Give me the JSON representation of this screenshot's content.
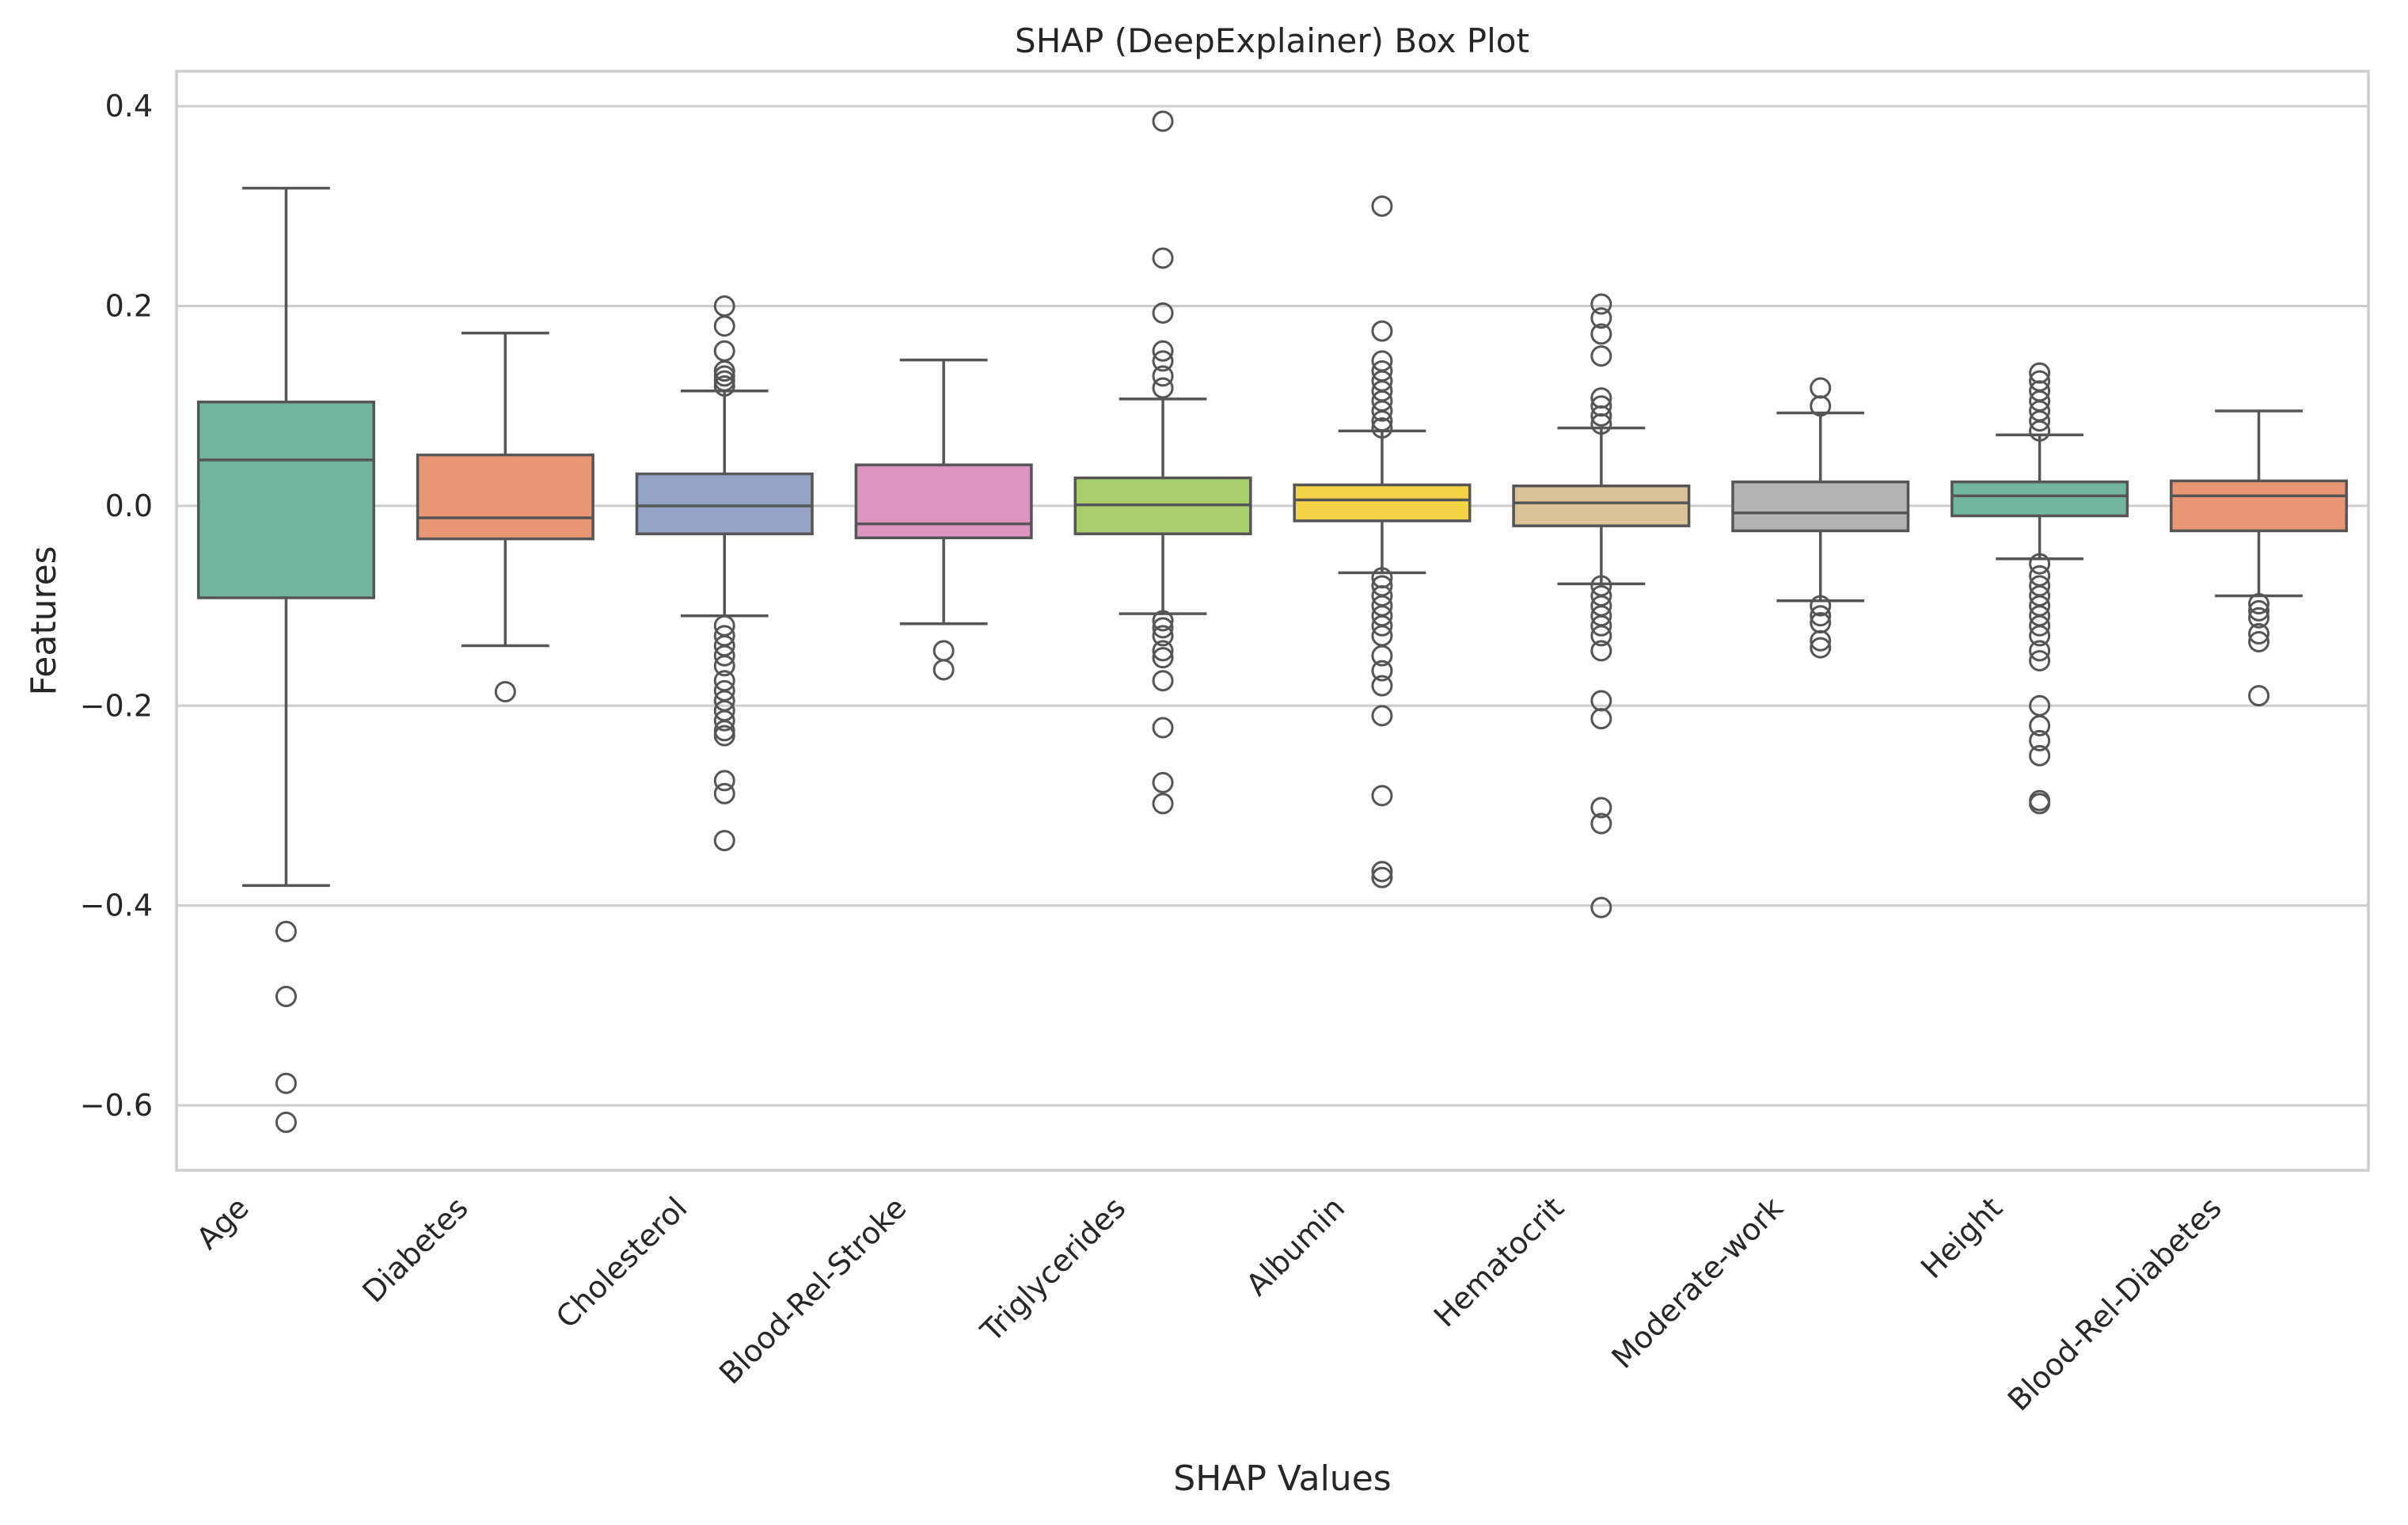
{
  "chart_data": {
    "type": "box",
    "title": "SHAP (DeepExplainer) Box Plot",
    "xlabel": "SHAP Values",
    "ylabel": "Features",
    "ylim": [
      -0.665,
      0.435
    ],
    "yticks": [
      0.4,
      0.2,
      0.0,
      -0.2,
      -0.4,
      -0.6
    ],
    "ytick_labels": [
      "0.4",
      "0.2",
      "0.0",
      "−0.2",
      "−0.4",
      "−0.6"
    ],
    "grid": "horizontal",
    "categories": [
      "Age",
      "Diabetes",
      "Cholesterol",
      "Blood-Rel-Stroke",
      "Triglycerides",
      "Albumin",
      "Hematocrit",
      "Moderate-work",
      "Height",
      "Blood-Rel-Diabetes"
    ],
    "colors": [
      "#72b6a1",
      "#e99675",
      "#95a3c6",
      "#dd94c0",
      "#a9cf6d",
      "#f5d347",
      "#dbc397",
      "#b3b3b3",
      "#72b6a1",
      "#e99675"
    ],
    "edge_color": "#555555",
    "boxes": [
      {
        "category": "Age",
        "whisker_low": -0.38,
        "q1": -0.092,
        "median": 0.046,
        "q3": 0.104,
        "whisker_high": 0.318,
        "outliers": [
          -0.426,
          -0.491,
          -0.578,
          -0.617
        ]
      },
      {
        "category": "Diabetes",
        "whisker_low": -0.14,
        "q1": -0.033,
        "median": -0.012,
        "q3": 0.051,
        "whisker_high": 0.173,
        "outliers": [
          -0.186
        ]
      },
      {
        "category": "Cholesterol",
        "whisker_low": -0.11,
        "q1": -0.028,
        "median": 0.0,
        "q3": 0.032,
        "whisker_high": 0.115,
        "outliers": [
          0.2,
          0.18,
          0.155,
          0.135,
          0.13,
          0.125,
          0.12,
          -0.12,
          -0.13,
          -0.14,
          -0.15,
          -0.16,
          -0.175,
          -0.185,
          -0.195,
          -0.205,
          -0.215,
          -0.225,
          -0.23,
          -0.275,
          -0.288,
          -0.335
        ]
      },
      {
        "category": "Blood-Rel-Stroke",
        "whisker_low": -0.118,
        "q1": -0.032,
        "median": -0.018,
        "q3": 0.041,
        "whisker_high": 0.146,
        "outliers": [
          -0.145,
          -0.164
        ]
      },
      {
        "category": "Triglycerides",
        "whisker_low": -0.108,
        "q1": -0.028,
        "median": 0.001,
        "q3": 0.028,
        "whisker_high": 0.107,
        "outliers": [
          0.385,
          0.248,
          0.193,
          0.155,
          0.145,
          0.13,
          0.118,
          -0.115,
          -0.122,
          -0.13,
          -0.145,
          -0.152,
          -0.175,
          -0.222,
          -0.277,
          -0.298
        ]
      },
      {
        "category": "Albumin",
        "whisker_low": -0.067,
        "q1": -0.015,
        "median": 0.006,
        "q3": 0.021,
        "whisker_high": 0.075,
        "outliers": [
          0.3,
          0.175,
          0.145,
          0.135,
          0.125,
          0.115,
          0.105,
          0.095,
          0.085,
          0.078,
          -0.072,
          -0.08,
          -0.09,
          -0.1,
          -0.11,
          -0.12,
          -0.13,
          -0.15,
          -0.165,
          -0.18,
          -0.21,
          -0.29,
          -0.366,
          -0.372
        ]
      },
      {
        "category": "Hematocrit",
        "whisker_low": -0.078,
        "q1": -0.02,
        "median": 0.003,
        "q3": 0.02,
        "whisker_high": 0.078,
        "outliers": [
          0.202,
          0.188,
          0.172,
          0.15,
          0.108,
          0.1,
          0.09,
          0.082,
          -0.08,
          -0.09,
          -0.1,
          -0.11,
          -0.12,
          -0.13,
          -0.145,
          -0.195,
          -0.213,
          -0.302,
          -0.318,
          -0.402
        ]
      },
      {
        "category": "Moderate-work",
        "whisker_low": -0.095,
        "q1": -0.025,
        "median": -0.007,
        "q3": 0.024,
        "whisker_high": 0.093,
        "outliers": [
          0.118,
          0.1,
          -0.1,
          -0.11,
          -0.117,
          -0.135,
          -0.142
        ]
      },
      {
        "category": "Height",
        "whisker_low": -0.053,
        "q1": -0.01,
        "median": 0.01,
        "q3": 0.024,
        "whisker_high": 0.071,
        "outliers": [
          0.133,
          0.125,
          0.115,
          0.105,
          0.095,
          0.085,
          0.075,
          -0.058,
          -0.07,
          -0.08,
          -0.09,
          -0.1,
          -0.11,
          -0.12,
          -0.13,
          -0.145,
          -0.155,
          -0.2,
          -0.22,
          -0.235,
          -0.25,
          -0.295,
          -0.298
        ]
      },
      {
        "category": "Blood-Rel-Diabetes",
        "whisker_low": -0.09,
        "q1": -0.025,
        "median": 0.01,
        "q3": 0.025,
        "whisker_high": 0.095,
        "outliers": [
          -0.098,
          -0.105,
          -0.112,
          -0.128,
          -0.136,
          -0.19
        ]
      }
    ]
  }
}
